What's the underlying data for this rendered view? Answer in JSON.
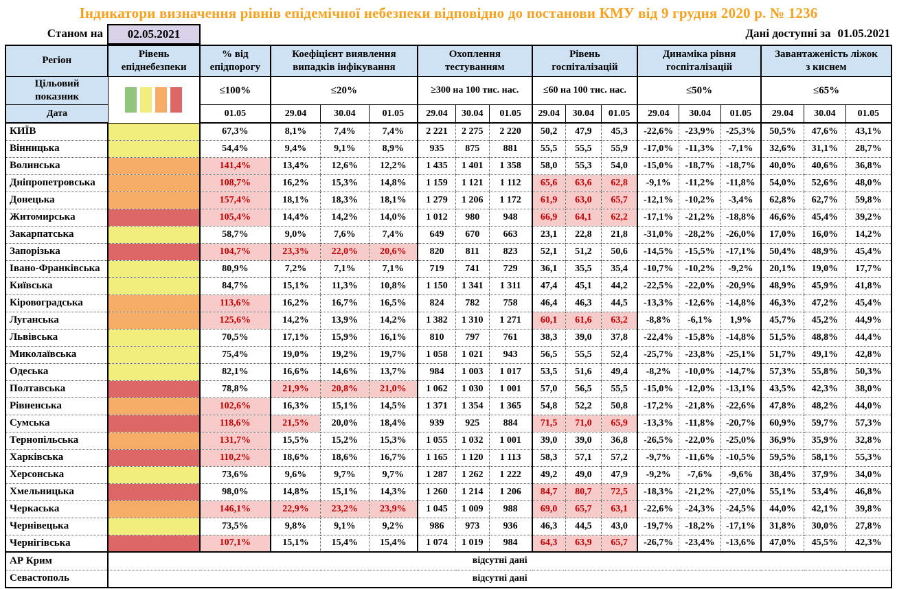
{
  "title": "Індикатори визначення рівнів епідемічної небезпеки відповідно до постанови КМУ від 9 грудня 2020 р. № 1236",
  "asof": {
    "label": "Станом на",
    "date": "02.05.2021"
  },
  "avail": {
    "label": "Дані доступні за",
    "date": "01.05.2021"
  },
  "table": {
    "columns": {
      "region": "Регіон",
      "level": "Рівень\nепіднебезпеки",
      "pct": "% від\nепідпорогу",
      "coef": "Коефіцієнт виявлення\nвипадків інфікування",
      "test": "Охоплення\nтестуванням",
      "hosp": "Рівень\nгоспіталізацій",
      "dyn": "Динаміка рівня\nгоспіталізацій",
      "beds": "Завантаженість ліжок\nз киснем",
      "target_label": "Цільовий\nпоказник",
      "date_label": "Дата"
    },
    "targets": {
      "pct": "≤100%",
      "coef": "≤20%",
      "test": "≥300 на 100 тис. нас.",
      "hosp": "≤60 на 100 тис. нас.",
      "dyn": "≤50%",
      "beds": "≤65%"
    },
    "dates": [
      "01.05",
      "29.04",
      "30.04",
      "01.05",
      "29.04",
      "30.04",
      "01.05",
      "29.04",
      "30.04",
      "01.05",
      "29.04",
      "30.04",
      "01.05",
      "29.04",
      "30.04",
      "01.05"
    ],
    "legend_colors": [
      "#93C47D",
      "#F2EE7E",
      "#F5AC66",
      "#DD6666"
    ],
    "level_colors": {
      "yellow": "#F2EE7E",
      "orange": "#F5AC66",
      "red": "#DD6666"
    },
    "accent_colors": {
      "title": "#F6A21E",
      "header_blue": "#CFE2F3",
      "asof_purple": "#D9D2E9",
      "alert_bg": "#F8CBCB",
      "alert_text": "#C00000"
    },
    "rows": [
      {
        "region": "КИЇВ",
        "level": "yellow",
        "cells": [
          "67,3%",
          "8,1%",
          "7,4%",
          "7,4%",
          "2 221",
          "2 275",
          "2 220",
          "50,2",
          "47,9",
          "45,3",
          "-22,6%",
          "-23,9%",
          "-25,3%",
          "50,5%",
          "47,6%",
          "43,1%"
        ]
      },
      {
        "region": "Вінницька",
        "level": "yellow",
        "cells": [
          "54,4%",
          "9,4%",
          "9,1%",
          "8,9%",
          "935",
          "875",
          "881",
          "55,5",
          "55,5",
          "55,9",
          "-17,0%",
          "-11,3%",
          "-7,1%",
          "32,6%",
          "31,1%",
          "28,7%"
        ]
      },
      {
        "region": "Волинська",
        "level": "orange",
        "cells": [
          [
            "141,4%",
            1
          ],
          "13,4%",
          "12,6%",
          "12,2%",
          "1 435",
          "1 401",
          "1 358",
          "58,0",
          "55,3",
          "54,0",
          "-15,0%",
          "-18,7%",
          "-18,7%",
          "40,0%",
          "40,6%",
          "36,8%"
        ]
      },
      {
        "region": "Дніпропетровська",
        "level": "orange",
        "cells": [
          [
            "108,7%",
            1
          ],
          "16,2%",
          "15,3%",
          "14,8%",
          "1 159",
          "1 121",
          "1 112",
          [
            "65,6",
            1
          ],
          [
            "63,6",
            1
          ],
          [
            "62,8",
            1
          ],
          "-9,1%",
          "-11,2%",
          "-11,8%",
          "54,0%",
          "52,6%",
          "48,0%"
        ]
      },
      {
        "region": "Донецька",
        "level": "orange",
        "cells": [
          [
            "157,4%",
            1
          ],
          "18,1%",
          "18,3%",
          "18,1%",
          "1 279",
          "1 206",
          "1 172",
          [
            "61,9",
            1
          ],
          [
            "63,0",
            1
          ],
          [
            "65,7",
            1
          ],
          "-12,1%",
          "-10,2%",
          "-3,4%",
          "62,8%",
          "62,7%",
          "59,8%"
        ]
      },
      {
        "region": "Житомирська",
        "level": "red",
        "cells": [
          [
            "105,4%",
            1
          ],
          "14,4%",
          "14,2%",
          "14,0%",
          "1 012",
          "980",
          "948",
          [
            "66,9",
            1
          ],
          [
            "64,1",
            1
          ],
          [
            "62,2",
            1
          ],
          "-17,1%",
          "-21,2%",
          "-18,8%",
          "46,6%",
          "45,4%",
          "39,2%"
        ]
      },
      {
        "region": "Закарпатська",
        "level": "yellow",
        "cells": [
          "58,7%",
          "9,0%",
          "7,6%",
          "7,4%",
          "649",
          "670",
          "663",
          "23,1",
          "22,8",
          "21,8",
          "-31,0%",
          "-28,2%",
          "-26,0%",
          "17,0%",
          "16,0%",
          "14,2%"
        ]
      },
      {
        "region": "Запорізька",
        "level": "red",
        "cells": [
          [
            "104,7%",
            1
          ],
          [
            "23,3%",
            1
          ],
          [
            "22,0%",
            1
          ],
          [
            "20,6%",
            1
          ],
          "820",
          "811",
          "823",
          "52,1",
          "51,2",
          "50,6",
          "-14,5%",
          "-15,5%",
          "-17,1%",
          "50,4%",
          "48,9%",
          "45,4%"
        ]
      },
      {
        "region": "Івано-Франківська",
        "level": "yellow",
        "cells": [
          "80,9%",
          "7,2%",
          "7,1%",
          "7,1%",
          "719",
          "741",
          "729",
          "36,1",
          "35,5",
          "35,4",
          "-10,7%",
          "-10,2%",
          "-9,2%",
          "20,1%",
          "19,0%",
          "17,7%"
        ]
      },
      {
        "region": "Київська",
        "level": "yellow",
        "cells": [
          "84,7%",
          "15,1%",
          "11,3%",
          "10,8%",
          "1 150",
          "1 341",
          "1 311",
          "47,4",
          "45,1",
          "44,2",
          "-22,5%",
          "-22,0%",
          "-20,9%",
          "48,9%",
          "45,9%",
          "41,8%"
        ]
      },
      {
        "region": "Кіровоградська",
        "level": "orange",
        "cells": [
          [
            "113,6%",
            1
          ],
          "16,2%",
          "16,7%",
          "16,5%",
          "824",
          "782",
          "758",
          "46,4",
          "46,3",
          "44,5",
          "-13,3%",
          "-12,6%",
          "-14,8%",
          "46,3%",
          "47,2%",
          "45,4%"
        ]
      },
      {
        "region": "Луганська",
        "level": "orange",
        "cells": [
          [
            "125,6%",
            1
          ],
          "14,2%",
          "13,9%",
          "14,2%",
          "1 382",
          "1 310",
          "1 271",
          [
            "60,1",
            1
          ],
          [
            "61,6",
            1
          ],
          [
            "63,2",
            1
          ],
          "-8,8%",
          "-6,1%",
          "1,9%",
          "45,7%",
          "45,2%",
          "44,9%"
        ]
      },
      {
        "region": "Львівська",
        "level": "yellow",
        "cells": [
          "70,5%",
          "17,1%",
          "15,9%",
          "16,1%",
          "810",
          "797",
          "761",
          "38,3",
          "39,0",
          "37,8",
          "-22,4%",
          "-15,8%",
          "-14,8%",
          "51,5%",
          "48,8%",
          "44,4%"
        ]
      },
      {
        "region": "Миколаївська",
        "level": "yellow",
        "cells": [
          "75,4%",
          "19,0%",
          "19,2%",
          "19,7%",
          "1 058",
          "1 021",
          "943",
          "56,5",
          "55,5",
          "52,4",
          "-25,7%",
          "-23,8%",
          "-25,1%",
          "51,7%",
          "49,1%",
          "42,8%"
        ]
      },
      {
        "region": "Одеська",
        "level": "yellow",
        "cells": [
          "82,1%",
          "16,6%",
          "14,6%",
          "13,7%",
          "984",
          "1 003",
          "1 017",
          "53,5",
          "51,6",
          "49,4",
          "-8,2%",
          "-10,0%",
          "-14,7%",
          "57,3%",
          "55,8%",
          "50,3%"
        ]
      },
      {
        "region": "Полтавська",
        "level": "red",
        "cells": [
          "78,8%",
          [
            "21,9%",
            1
          ],
          [
            "20,8%",
            1
          ],
          [
            "21,0%",
            1
          ],
          "1 062",
          "1 030",
          "1 001",
          "57,0",
          "56,5",
          "55,5",
          "-15,0%",
          "-12,0%",
          "-13,1%",
          "43,5%",
          "42,3%",
          "38,0%"
        ]
      },
      {
        "region": "Рівненська",
        "level": "orange",
        "cells": [
          [
            "102,6%",
            1
          ],
          "16,3%",
          "15,1%",
          "14,5%",
          "1 371",
          "1 354",
          "1 365",
          "54,8",
          "52,2",
          "50,8",
          "-17,2%",
          "-21,8%",
          "-22,6%",
          "47,8%",
          "48,2%",
          "44,0%"
        ]
      },
      {
        "region": "Сумська",
        "level": "red",
        "cells": [
          [
            "118,6%",
            1
          ],
          [
            "21,5%",
            1
          ],
          "20,0%",
          "18,4%",
          "939",
          "925",
          "884",
          [
            "71,5",
            1
          ],
          [
            "71,0",
            1
          ],
          [
            "65,9",
            1
          ],
          "-13,3%",
          "-11,8%",
          "-20,7%",
          "60,9%",
          "59,7%",
          "57,3%"
        ]
      },
      {
        "region": "Тернопільська",
        "level": "orange",
        "cells": [
          [
            "131,7%",
            1
          ],
          "15,5%",
          "15,2%",
          "15,3%",
          "1 055",
          "1 032",
          "1 001",
          "39,0",
          "39,0",
          "36,8",
          "-26,5%",
          "-22,0%",
          "-25,0%",
          "36,9%",
          "35,9%",
          "32,8%"
        ]
      },
      {
        "region": "Харківська",
        "level": "red",
        "cells": [
          [
            "110,2%",
            1
          ],
          "18,6%",
          "18,6%",
          "16,7%",
          "1 165",
          "1 120",
          "1 113",
          "58,3",
          "57,1",
          "57,2",
          "-9,7%",
          "-11,6%",
          "-10,5%",
          "59,5%",
          "58,1%",
          "55,3%"
        ]
      },
      {
        "region": "Херсонська",
        "level": "yellow",
        "cells": [
          "73,6%",
          "9,6%",
          "9,7%",
          "9,7%",
          "1 287",
          "1 262",
          "1 222",
          "49,2",
          "49,0",
          "47,9",
          "-9,2%",
          "-7,6%",
          "-9,6%",
          "38,4%",
          "37,9%",
          "34,0%"
        ]
      },
      {
        "region": "Хмельницька",
        "level": "red",
        "cells": [
          "98,0%",
          "14,8%",
          "15,1%",
          "14,3%",
          "1 260",
          "1 214",
          "1 206",
          [
            "84,7",
            1
          ],
          [
            "80,7",
            1
          ],
          [
            "72,5",
            1
          ],
          "-18,3%",
          "-21,2%",
          "-27,0%",
          "55,1%",
          "53,4%",
          "46,8%"
        ]
      },
      {
        "region": "Черкаська",
        "level": "orange",
        "cells": [
          [
            "146,1%",
            1
          ],
          [
            "22,9%",
            1
          ],
          [
            "23,2%",
            1
          ],
          [
            "23,9%",
            1
          ],
          "1 045",
          "1 009",
          "988",
          [
            "69,0",
            1
          ],
          [
            "65,7",
            1
          ],
          [
            "63,1",
            1
          ],
          "-22,6%",
          "-24,3%",
          "-24,5%",
          "44,0%",
          "42,1%",
          "39,8%"
        ]
      },
      {
        "region": "Чернівецька",
        "level": "yellow",
        "cells": [
          "73,5%",
          "9,8%",
          "9,1%",
          "9,2%",
          "986",
          "973",
          "936",
          "46,3",
          "44,5",
          "43,0",
          "-19,7%",
          "-18,2%",
          "-17,1%",
          "31,8%",
          "30,0%",
          "27,8%"
        ]
      },
      {
        "region": "Чернігівська",
        "level": "red",
        "cells": [
          [
            "107,1%",
            1
          ],
          "15,1%",
          "15,4%",
          "15,4%",
          "1 074",
          "1 019",
          "984",
          [
            "64,3",
            1
          ],
          [
            "63,9",
            1
          ],
          [
            "65,7",
            1
          ],
          "-26,7%",
          "-23,4%",
          "-13,6%",
          "47,0%",
          "45,5%",
          "42,3%"
        ]
      },
      {
        "region": "АР Крим",
        "no_data": "відсутні дані"
      },
      {
        "region": "Севастополь",
        "no_data": "відсутні дані"
      }
    ]
  }
}
